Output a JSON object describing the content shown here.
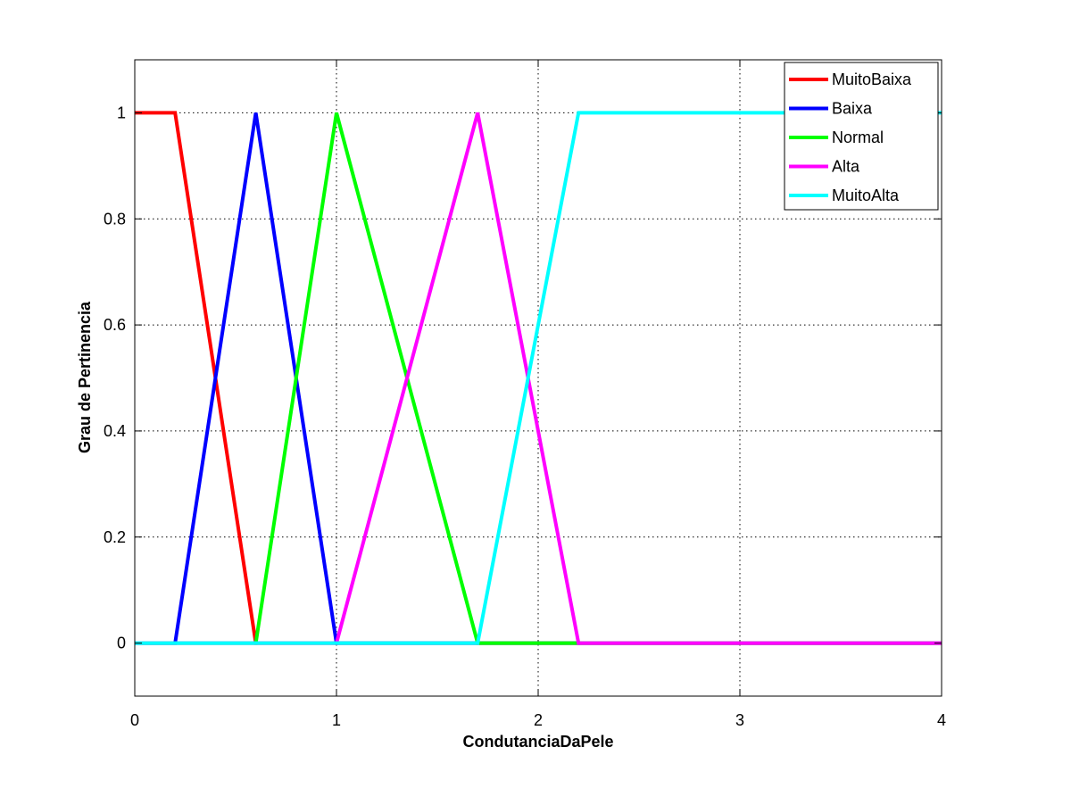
{
  "chart_data": {
    "type": "line",
    "title": "",
    "xlabel": "CondutanciaDaPele",
    "ylabel": "Grau de Pertinencia",
    "xlim": [
      0,
      4
    ],
    "ylim": [
      -0.1,
      1.1
    ],
    "xticks": [
      0,
      1,
      2,
      3,
      4
    ],
    "yticks": [
      0,
      0.2,
      0.4,
      0.6,
      0.8,
      1
    ],
    "xtick_labels": [
      "0",
      "1",
      "2",
      "3",
      "4"
    ],
    "ytick_labels": [
      "0",
      "0.2",
      "0.4",
      "0.6",
      "0.8",
      "1"
    ],
    "grid": true,
    "legend_position": "top-right",
    "series": [
      {
        "name": "MuitoBaixa",
        "color": "#ff0000",
        "x": [
          0,
          0.2,
          0.6,
          4
        ],
        "y": [
          1,
          1,
          0,
          0
        ]
      },
      {
        "name": "Baixa",
        "color": "#0000ff",
        "x": [
          0,
          0.2,
          0.6,
          1.0,
          4
        ],
        "y": [
          0,
          0,
          1,
          0,
          0
        ]
      },
      {
        "name": "Normal",
        "color": "#00ff00",
        "x": [
          0,
          0.6,
          1.0,
          1.7,
          4
        ],
        "y": [
          0,
          0,
          1,
          0,
          0
        ]
      },
      {
        "name": "Alta",
        "color": "#ff00ff",
        "x": [
          0,
          1.0,
          1.7,
          2.2,
          4
        ],
        "y": [
          0,
          0,
          1,
          0,
          0
        ]
      },
      {
        "name": "MuitoAlta",
        "color": "#00ffff",
        "x": [
          0,
          1.7,
          2.2,
          4
        ],
        "y": [
          0,
          0,
          1,
          1
        ]
      }
    ]
  }
}
